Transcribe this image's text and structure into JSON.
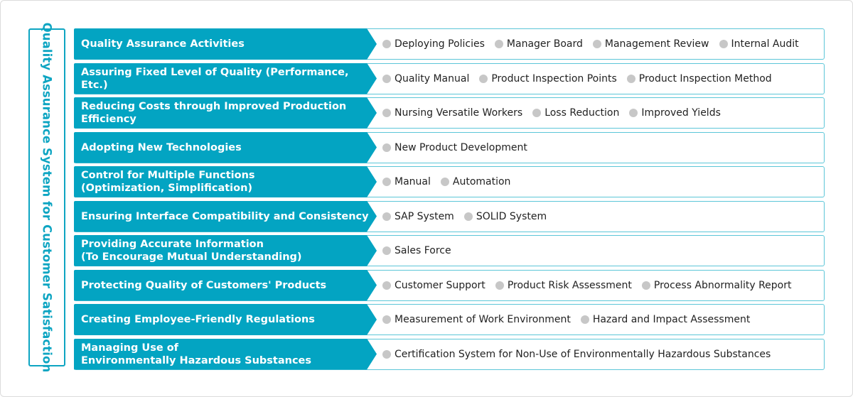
{
  "side_title": "Quality Assurance System for Customer Satisfaction",
  "rows": [
    {
      "heading": "Quality Assurance Activities",
      "items": [
        "Deploying Policies",
        "Manager Board",
        "Management Review",
        "Internal Audit"
      ]
    },
    {
      "heading": "Assuring Fixed Level of Quality (Performance, Etc.)",
      "items": [
        "Quality Manual",
        "Product Inspection Points",
        "Product Inspection Method"
      ]
    },
    {
      "heading": "Reducing Costs through Improved Production Efficiency",
      "items": [
        "Nursing Versatile Workers",
        "Loss Reduction",
        "Improved Yields"
      ]
    },
    {
      "heading": "Adopting New Technologies",
      "items": [
        "New Product Development"
      ]
    },
    {
      "heading": "Control for Multiple Functions\n(Optimization, Simplification)",
      "items": [
        "Manual",
        "Automation"
      ]
    },
    {
      "heading": "Ensuring Interface Compatibility and Consistency",
      "items": [
        "SAP System",
        "SOLID System"
      ]
    },
    {
      "heading": "Providing Accurate Information\n (To Encourage Mutual Understanding)",
      "items": [
        "Sales Force"
      ]
    },
    {
      "heading": "Protecting Quality of Customers' Products",
      "items": [
        "Customer Support",
        "Product Risk Assessment",
        "Process Abnormality Report"
      ]
    },
    {
      "heading": "Creating Employee-Friendly Regulations",
      "items": [
        "Measurement of Work Environment",
        "Hazard and Impact Assessment"
      ]
    },
    {
      "heading": "Managing Use of\nEnvironmentally Hazardous Substances",
      "items": [
        "Certification System for Non-Use of Environmentally Hazardous Substances"
      ]
    }
  ],
  "colors": {
    "accent": "#03a4c2",
    "border": "#5cc6d8",
    "bullet": "#c7c7c7"
  }
}
